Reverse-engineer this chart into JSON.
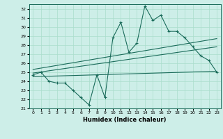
{
  "title": "",
  "xlabel": "Humidex (Indice chaleur)",
  "ylabel": "",
  "bg_color": "#cdeee8",
  "grid_color": "#aaddcc",
  "line_color": "#1a6b5a",
  "xlim": [
    -0.5,
    23.5
  ],
  "ylim": [
    21,
    32.5
  ],
  "xticks": [
    0,
    1,
    2,
    3,
    4,
    5,
    6,
    7,
    8,
    9,
    10,
    11,
    12,
    13,
    14,
    15,
    16,
    17,
    18,
    19,
    20,
    21,
    22,
    23
  ],
  "yticks": [
    21,
    22,
    23,
    24,
    25,
    26,
    27,
    28,
    29,
    30,
    31,
    32
  ],
  "main_x": [
    0,
    1,
    2,
    3,
    4,
    5,
    6,
    7,
    8,
    9,
    10,
    11,
    12,
    13,
    14,
    15,
    16,
    17,
    18,
    19,
    20,
    21,
    22,
    23
  ],
  "main_y": [
    24.7,
    25.0,
    24.0,
    23.8,
    23.8,
    23.0,
    22.2,
    21.4,
    24.7,
    22.2,
    28.8,
    30.5,
    27.2,
    28.2,
    32.3,
    30.7,
    31.3,
    29.5,
    29.5,
    28.8,
    27.8,
    26.8,
    26.3,
    25.0
  ],
  "upper_line_x": [
    0,
    23
  ],
  "upper_line_y": [
    25.3,
    28.7
  ],
  "middle_line_x": [
    0,
    23
  ],
  "middle_line_y": [
    24.9,
    27.8
  ],
  "lower_line_x": [
    0,
    23
  ],
  "lower_line_y": [
    24.5,
    25.1
  ]
}
